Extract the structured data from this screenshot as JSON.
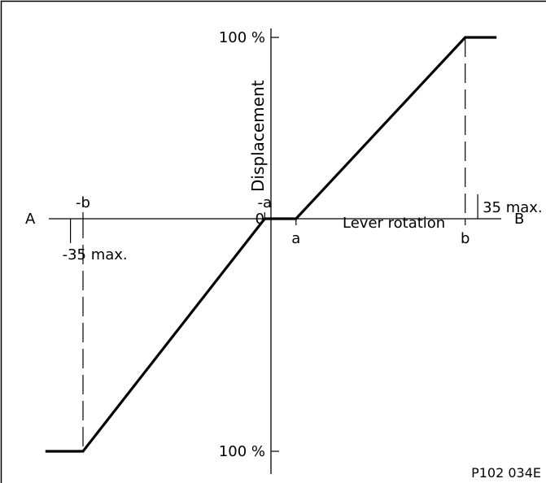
{
  "chart_data": {
    "type": "line",
    "title": "",
    "xlabel": "Lever rotation",
    "ylabel": "Displacement",
    "grid": false,
    "axis_end_labels": {
      "left": "A",
      "right": "B"
    },
    "origin_label": "0",
    "y_tick_labels": {
      "top": "100 %",
      "bottom": "100 %"
    },
    "x_marks": [
      {
        "label": "-b",
        "value": -3.0
      },
      {
        "label": "-a",
        "value": -0.1
      },
      {
        "label": "a",
        "value": 0.4
      },
      {
        "label": "b",
        "value": 3.1
      }
    ],
    "limit_annotations": [
      {
        "text": "-35  max.",
        "value": -3.2
      },
      {
        "text": "35  max.",
        "value": 3.3
      }
    ],
    "xlim": [
      -3.7,
      3.7
    ],
    "ylim": [
      -100,
      100
    ],
    "series": [
      {
        "points": [
          {
            "x": -3.6,
            "y": -100
          },
          {
            "x": -3.0,
            "y": -100
          },
          {
            "x": -0.1,
            "y": 0
          },
          {
            "x": 0.4,
            "y": 0
          },
          {
            "x": 3.1,
            "y": 100
          },
          {
            "x": 3.6,
            "y": 100
          }
        ]
      }
    ],
    "figure_code": "P102 034E"
  }
}
